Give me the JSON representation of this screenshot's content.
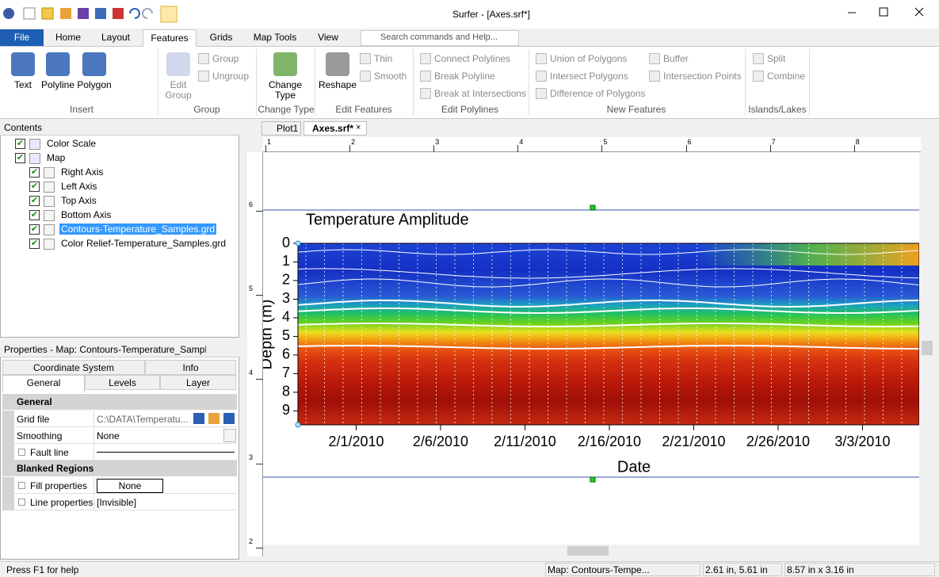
{
  "title_bar": {
    "title": "Surfer - [Axes.srf*]"
  },
  "ribbon": {
    "tabs": [
      "File",
      "Home",
      "Layout",
      "Features",
      "Grids",
      "Map Tools",
      "View"
    ],
    "search": "Search commands and Help...",
    "groups": [
      {
        "label": "Insert",
        "items": [
          "Text",
          "Polyline",
          "Polygon"
        ]
      },
      {
        "label": "Group",
        "items": [
          "Edit Group",
          "Group",
          "Ungroup"
        ]
      },
      {
        "label": "Change Type",
        "items": [
          "Change Type"
        ]
      },
      {
        "label": "Edit Features",
        "items": [
          "Reshape",
          "Thin",
          "Smooth"
        ]
      },
      {
        "label": "Edit Polylines",
        "items": [
          "Connect Polylines",
          "Break Polyline",
          "Break at Intersections"
        ]
      },
      {
        "label": "New Features",
        "items": [
          "Union of Polygons",
          "Intersect Polygons",
          "Difference of Polygons",
          "Buffer",
          "Intersection Points"
        ]
      },
      {
        "label": "Islands/Lakes",
        "items": [
          "Split",
          "Combine"
        ]
      }
    ]
  },
  "contents": {
    "title": "Contents",
    "items": [
      {
        "label": "Color Scale"
      },
      {
        "label": "Map",
        "children": [
          "Right Axis",
          "Left Axis",
          "Top Axis",
          "Bottom Axis",
          "Contours-Temperature_Samples.grd",
          "Color Relief-Temperature_Samples.grd"
        ]
      }
    ]
  },
  "properties": {
    "title": "Properties - Map: Contours-Temperature_Sampl...",
    "tabs": [
      [
        "Coordinate System",
        "Info"
      ],
      [
        "General",
        "Levels",
        "Layer"
      ]
    ],
    "sections": [
      {
        "title": "General",
        "rows": [
          [
            "Grid file",
            "C:\\DATA\\Temperatu..."
          ],
          [
            "Smoothing",
            "None"
          ],
          [
            "Fault line"
          ]
        ]
      },
      {
        "title": "Blanked Regions",
        "rows": [
          [
            "Fill properties",
            "None"
          ],
          [
            "Line properties",
            "[Invisible]"
          ]
        ]
      }
    ]
  },
  "document": {
    "tabs": [
      "Plot1",
      "Axes.srf*"
    ],
    "ruler_h": [
      1,
      2,
      3,
      4,
      5,
      6,
      7,
      8
    ],
    "ruler_v": [
      6,
      5,
      4,
      3,
      2
    ]
  },
  "chart_data": {
    "type": "contour",
    "title": "Temperature Amplitude",
    "y_label": "Depth (m)",
    "x_label": "Date",
    "ylim": [
      0,
      9.75
    ],
    "yticks": [
      0,
      1,
      2,
      3,
      4,
      5,
      6,
      7,
      8,
      9
    ],
    "y_inverted": true,
    "xlim": [
      28.55,
      65.36
    ],
    "xticks": [
      {
        "value": 32,
        "label": "2/1/2010"
      },
      {
        "value": 37,
        "label": "2/6/2010"
      },
      {
        "value": 42,
        "label": "2/11/2010"
      },
      {
        "value": 47,
        "label": "2/16/2010"
      },
      {
        "value": 52,
        "label": "2/21/2010"
      },
      {
        "value": 57,
        "label": "2/26/2010"
      },
      {
        "value": 62,
        "label": "3/3/2010"
      }
    ]
  },
  "status_bar": [
    "Press F1 for help",
    "Map: Contours-Tempe...",
    "2.61 in, 5.61 in",
    "8.57 in x 3.16 in"
  ]
}
